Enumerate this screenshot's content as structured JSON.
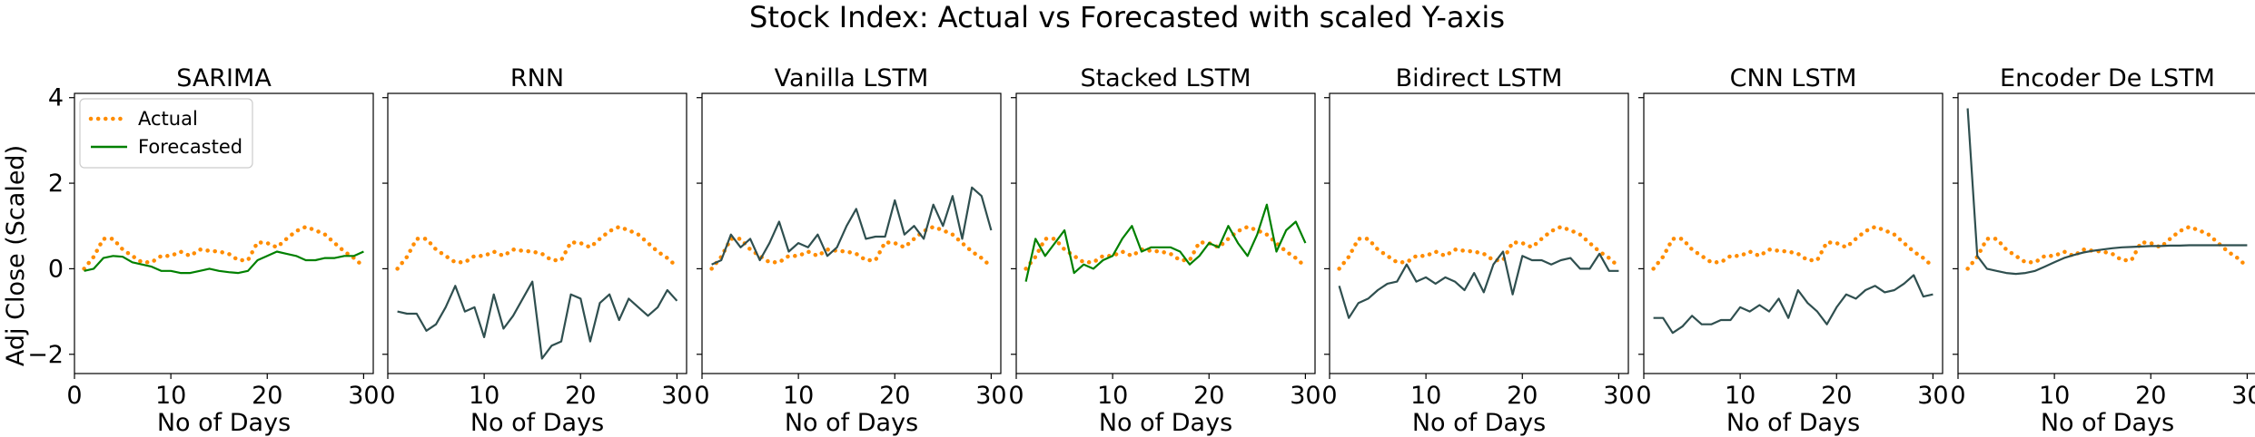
{
  "figure": {
    "suptitle": "Stock Index: Actual vs Forecasted with scaled Y-axis",
    "ylabel": "Adj Close (Scaled)"
  },
  "colors": {
    "actual": "#ff8c00",
    "forecasted": "#008000",
    "dark": "#2f4f4f"
  },
  "legend": {
    "actual": "Actual",
    "forecasted": "Forecasted"
  },
  "chart_data": {
    "type": "line",
    "xlabel": "No of Days",
    "ylabel": "Adj Close (Scaled)",
    "xlim": [
      0,
      31
    ],
    "ylim": [
      -2.45,
      4.1
    ],
    "x_ticks": [
      0,
      10,
      20,
      30
    ],
    "y_ticks": [
      -2,
      0,
      2,
      4
    ],
    "grid": false,
    "legend_placement": "upper-left (first panel)",
    "x": [
      1,
      2,
      3,
      4,
      5,
      6,
      7,
      8,
      9,
      10,
      11,
      12,
      13,
      14,
      15,
      16,
      17,
      18,
      19,
      20,
      21,
      22,
      23,
      24,
      25,
      26,
      27,
      28,
      29,
      30
    ],
    "actual": [
      0.0,
      0.28,
      0.7,
      0.7,
      0.45,
      0.3,
      0.15,
      0.15,
      0.3,
      0.3,
      0.4,
      0.3,
      0.45,
      0.42,
      0.4,
      0.35,
      0.2,
      0.2,
      0.62,
      0.6,
      0.5,
      0.7,
      0.88,
      0.98,
      0.9,
      0.8,
      0.6,
      0.4,
      0.25,
      0.05
    ],
    "panels": [
      {
        "title": "SARIMA",
        "forecast_color": "forecasted",
        "forecast": [
          -0.05,
          0.0,
          0.25,
          0.3,
          0.28,
          0.15,
          0.1,
          0.05,
          -0.05,
          -0.05,
          -0.1,
          -0.1,
          -0.05,
          0.0,
          -0.05,
          -0.08,
          -0.1,
          -0.05,
          0.2,
          0.3,
          0.4,
          0.35,
          0.3,
          0.2,
          0.2,
          0.25,
          0.25,
          0.3,
          0.3,
          0.4
        ]
      },
      {
        "title": "RNN",
        "forecast_color": "dark",
        "forecast": [
          -1.0,
          -1.05,
          -1.05,
          -1.45,
          -1.3,
          -0.9,
          -0.4,
          -1.0,
          -0.9,
          -1.6,
          -0.6,
          -1.4,
          -1.1,
          -0.7,
          -0.3,
          -2.1,
          -1.8,
          -1.7,
          -0.6,
          -0.7,
          -1.7,
          -0.8,
          -0.6,
          -1.2,
          -0.7,
          -0.9,
          -1.1,
          -0.9,
          -0.5,
          -0.75
        ]
      },
      {
        "title": "Vanilla LSTM",
        "forecast_color": "dark",
        "forecast": [
          0.1,
          0.2,
          0.8,
          0.5,
          0.7,
          0.2,
          0.6,
          1.1,
          0.4,
          0.6,
          0.5,
          0.8,
          0.3,
          0.5,
          1.0,
          1.4,
          0.7,
          0.75,
          0.75,
          1.6,
          0.8,
          1.0,
          0.7,
          1.5,
          1.0,
          1.7,
          0.7,
          1.9,
          1.7,
          0.9
        ]
      },
      {
        "title": "Stacked LSTM",
        "forecast_color": "forecasted",
        "forecast": [
          -0.3,
          0.7,
          0.3,
          0.6,
          0.9,
          -0.1,
          0.1,
          0.0,
          0.2,
          0.3,
          0.7,
          1.0,
          0.4,
          0.5,
          0.5,
          0.5,
          0.4,
          0.1,
          0.3,
          0.6,
          0.5,
          1.0,
          0.6,
          0.3,
          0.8,
          1.5,
          0.4,
          0.9,
          1.1,
          0.6
        ]
      },
      {
        "title": "Bidirect LSTM",
        "forecast_color": "dark",
        "forecast": [
          -0.4,
          -1.15,
          -0.8,
          -0.7,
          -0.5,
          -0.35,
          -0.3,
          0.1,
          -0.3,
          -0.2,
          -0.35,
          -0.2,
          -0.3,
          -0.5,
          -0.1,
          -0.55,
          0.1,
          0.4,
          -0.6,
          0.3,
          0.2,
          0.2,
          0.1,
          0.2,
          0.25,
          0.0,
          0.0,
          0.35,
          -0.05,
          -0.05
        ]
      },
      {
        "title": "CNN LSTM",
        "forecast_color": "dark",
        "forecast": [
          -1.15,
          -1.15,
          -1.5,
          -1.35,
          -1.1,
          -1.3,
          -1.3,
          -1.2,
          -1.2,
          -0.9,
          -1.0,
          -0.85,
          -1.0,
          -0.7,
          -1.15,
          -0.5,
          -0.8,
          -1.0,
          -1.3,
          -0.9,
          -0.6,
          -0.7,
          -0.5,
          -0.4,
          -0.55,
          -0.5,
          -0.35,
          -0.15,
          -0.65,
          -0.6
        ]
      },
      {
        "title": "Encoder De LSTM",
        "forecast_color": "dark",
        "forecast": [
          3.75,
          0.3,
          0.0,
          -0.05,
          -0.1,
          -0.12,
          -0.1,
          -0.05,
          0.05,
          0.15,
          0.25,
          0.32,
          0.38,
          0.42,
          0.45,
          0.48,
          0.5,
          0.51,
          0.52,
          0.53,
          0.53,
          0.54,
          0.54,
          0.55,
          0.55,
          0.55,
          0.55,
          0.55,
          0.55,
          0.55
        ]
      }
    ]
  }
}
